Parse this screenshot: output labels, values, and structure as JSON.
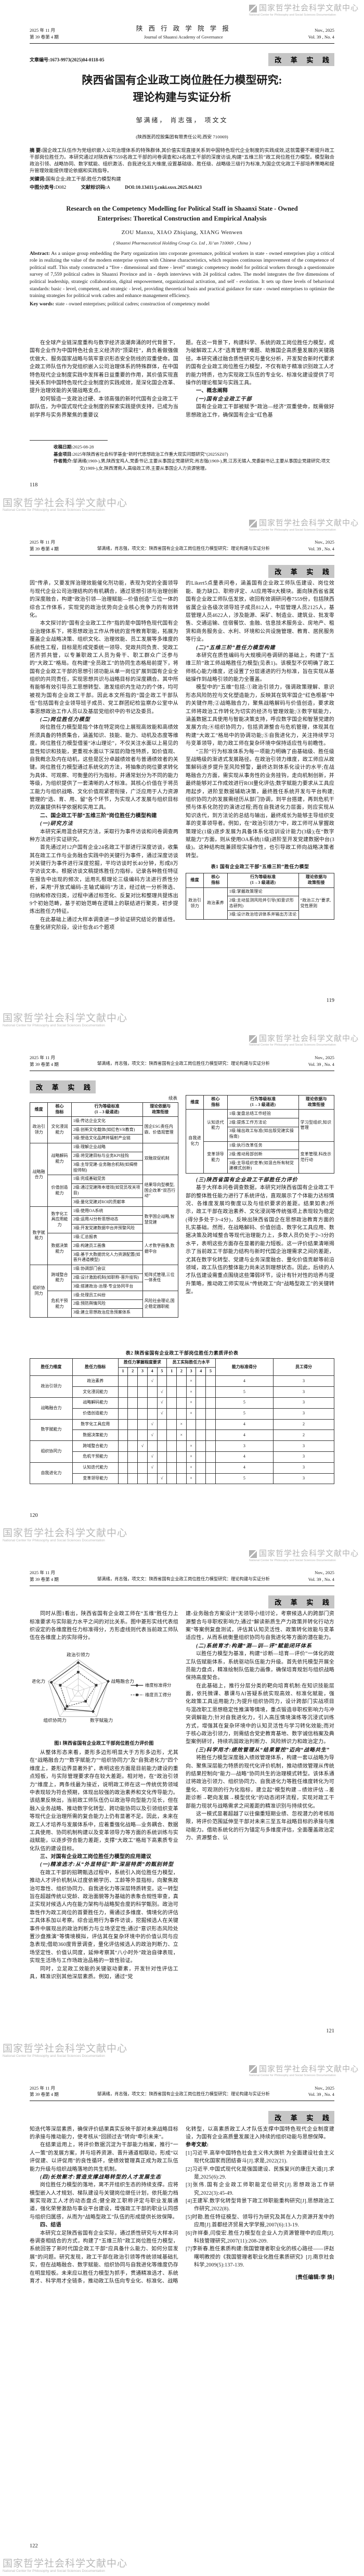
{
  "watermark": {
    "cn": "国家哲学社会科学文献中心",
    "en": "National Center for Philosophy and Social Sciences Documentation"
  },
  "header": {
    "date_cn": "2025 年 11 月",
    "issue_cn": "第 39 卷第 4 期",
    "journal_cn": "陕 西 行 政 学 院 学 报",
    "journal_en": "Journal of Shaanxi Academy of Governance",
    "date_en": "Nov., 2025",
    "vol_en": "Vol. 39 , No. 4",
    "running_title": "邹满绪，肖志强，项文文：陕西省国有企业政工岗位胜任力模型研究：理论构建与实证分析",
    "section_badge": "改 革 实 践"
  },
  "page1": {
    "article_no": "文章编号:1673-9973(2025)04-0118-05",
    "title1": "陕西省国有企业政工岗位胜任力模型研究:",
    "title2": "理论构建与实证分析",
    "authors": "邹满绪，  肖志强，  项文文",
    "affiliation": "(陕西医药控股集团有限责任公司,西安 710069)",
    "abstract_label": "摘  要:",
    "abstract": "国企政工队伍作为党组织嵌入公司治理体系的特殊群体,其价值实现直接关系到中国特色现代企业制度的实践成效,这就需要不断提升政工干部岗位胜任力。本研究通过对陕西省7559名政工干部的问卷调查和24名政工干部的深度访谈,构建“五维三阶”政工岗位胜任力模型。模型融合政治引领、战略协同、数字赋能、组织激活、自我进化五大维度,设置基础级、胜任级、战略级三级行为标准,为国企优化政工干部培养策略和提升管理效能提供理论依据和实践指导。",
    "keywords_label": "关键词:",
    "keywords": "国有企业;政工干部;胜任力模型构建",
    "clc_label": "中图分类号:",
    "clc": "D082",
    "doc_label": "文献标识码:",
    "doc_code": "A",
    "doi": "DOI:10.13411/j.cnki.sxsx.2025.04.023",
    "en_title1": "Research on the Competency Modelling for Political Staff in Shaanxi State - Owned",
    "en_title2": "Enterprises: Thoretical Construction and Empirical Analysis",
    "en_authors": "ZOU Manxu, XIAO Zhiqiang, XIANG Wenwen",
    "en_affiliation": "( Shaanxi Pharmaceutical Holding Group Co. Ltd , Xi’an 710069 , China )",
    "en_abstract_label": "Abstract:",
    "en_abstract": "As a unique group embedding the Party organization into corporate governance, political workers in state - owned enterprises play a critical role in realizing the value of the modern enterprise system with Chinese characteristics, which requires continuous improvement of the competence of political staff. This study constructed a “five - dimensional and three - level” strategic competency model for political workers through a questionnaire survey of 7,559 political cadres in Shaanxi Province and in - depth interviews with 24 political cadres. The model integrates the five dimensions of political leadership, strategic collaboration, digital empowerment, organizational activation, and self - evolution. It sets up three levels of behavioral standards: basic - level, competent, and strategic - level, providing theoretical basis and practical guidance for state - owned enterprises to optimize the training strategies for political work cadres and enhance management efficiency.",
    "en_keywords_label": "Key words:",
    "en_keywords": "state - owned enterprises; political cadres; construction of competency model",
    "fn_received_label": "收稿日期:",
    "fn_received": "2025-08-28",
    "fn_fund_label": "基金项目:",
    "fn_fund": "2025年陕西省社会科学基金“新时代思想政治工作重大现实问题研究”(2025SZ07)",
    "fn_bio_label": "作者简介:",
    "fn_bio": "邹满绪(1969-),男,陕西宝鸡人,党委书记,主要从事国企党建研究;肖志强(1969-),男,江苏无锡人,党委副书记,主要从事国企党建研究;项文文(1989-),女,陕西渭南人,高级政工师,主要从事国企人力资源管理。",
    "page_no": "118",
    "left_blocks": [
      {
        "t": "在全球产业链深度重构与数字经济浪潮奔涌的时代背景下，国有企业作为中国特色社会主义经济的“顶梁柱”，肩负着做强做优做大、服务国家战略与筑牢意识形态安全防线的双重使命。国企政工师队伍作为党组织嵌入公司治理体系的特殊群体，在中国特色现代企业制度实践中发挥着日益重要的作用，其价值实现直接关系到中国特色现代企业制度的实践成效，是深化国企改革、提升治理效能的关键战略支点。"
      },
      {
        "t": "如何锻造一支政治过硬、本领高强的新时代国有企业政工干部队伍，为中国式现代企业制度的探索实践提供支持，已成为当前学界与实务界聚焦的重要议"
      }
    ],
    "right_blocks": [
      {
        "c": "cont",
        "t": "题。在这一背景下，构建科学、系统的政工岗位胜任力模型，成为破解政工人才“选育管用”难题、助推国企高质量发展的关键路径。本研究通过融合质性研究与量化分析，开发契合新时代要求的国有企业政工岗位胜任力模型，不仅有助于精准识别政工人才的能力特质，也为实现政工队伍的专业化、标准化建设提供了可操作的理论框架与实践工具。"
      },
      {
        "c": "h2",
        "t": "一、概念阐释"
      },
      {
        "c": "h3",
        "t": "(一)国有企业政工干部"
      },
      {
        "t": "国有企业政工干部被赋予“政治—经济”双重使命，既需做好思想政治工作，确保国有企业“红色基"
      }
    ]
  },
  "page2": {
    "page_no": "119",
    "left_blocks": [
      {
        "c": "cont",
        "t": "因”传承，又要发挥治理效能催化剂功能，表现为党的全面领导与现代企业公司治理结构的有机耦合，通过思想引领与治理创新的深度融合，构建“政治引领—治理赋能—价值创造”三位一体的综合工作体系，实现党的政治优势向企业核心竞争力的有效转化。"
      },
      {
        "t": "本文探讨的“国有企业政工工作”指的是中国特色现代国有企业治理体系下，将思想政治工作从传统的宣传教育职能，拓展为覆盖企业战略决策、组织文化、治理效能、员工发展等多维度的系统性工程，目标是形成党委统一领导、党政共同负责、党政工团齐抓共管，以专兼职政工人员为骨干、职工群众广泛参与的“大政工”格局。在构建“全员政工”的协同生态格局前提下，将国有企业政工干部的思想引领功能从单一岗位扩展到国有企业全组织的共同责任，实现思想共识与战略目标的深度耦合。其中所有能够有效引导员工思想转型、激发组织内生动力的个体，均可被视为国有企业政工干部。因此本文所指的“国企政工干部队伍”包括国有企业领导班子成员、党工群团纪检监察办公室中从事思想政治工作人员以及基层党组织中的书记及委员。"
      },
      {
        "c": "h3",
        "t": "(二)岗位胜任力模型"
      },
      {
        "t": "岗位胜任力模型是指个体在特定岗位上展现高效能和高绩效所须具备的特质集合，涵盖知识、技能、能力、动机及态度等维度。岗位胜任力模型借鉴“冰山理论”，不仅关注水面以上易见的显性知识和技能，更重视水面以下深层的隐性特质，如价值观、自我概念及内在动机，这些是区分卓越绩效者与普通绩效者的关键。岗位胜任力模型通过系统化的方法，将抽象的岗位要求转化为具体、可观察、可衡量的行为指标，并通常划分为不同的能力等级，为组织提供了一套清晰的人才标准。其核心价值在于将员工能力与组织战略、文化价值观紧密衔接，广泛应用于人力资源管理的“选、育、用、留”各个环节，为实现人才发展与组织目标的双赢提供科学依据和实用工具。"
      },
      {
        "c": "h2",
        "t": "二、国企政工干部“五维三阶”岗位胜任力模型构建"
      },
      {
        "c": "h3",
        "t": "(一)研究方法"
      },
      {
        "t": "本研究采用混合研究方法，采取行为事件访谈和问卷调查两种方法进行实证研究。"
      },
      {
        "t": "首先通过对12户国有企业24名政工干部进行深度访谈，收集其在政工工作与业务融合实践中的关键行为事件，通过深度访谈对关键行为事件进行深度挖掘，平均访谈时长40分钟，形成8万字访谈文本。根据访谈文稿提炼胜任力指标，记录各种胜任特征在报告中出现的频次，运用扎根理论三级编码方法进行质性分析，采用“开放式编码-主轴式编码”方法，经过统一分析筛选、归纳和修改归类，过程中通过标签化、反复对比和整理共提炼出9个初始范畴，基于初始范畴在逻辑上的联结进行聚类，初步提炼出胜任力特征。"
      },
      {
        "t": "在此基础上通过大样本调查进一步验证研究结论的普适性。在量化研究阶段，设计包含45个题项"
      }
    ],
    "right_blocks": [
      {
        "c": "cont",
        "t": "的Likert5点量表问卷，涵盖国有企业政工师队伍建设、岗位效能、能力缺口、职称评定、AI应用等8大模块。面向陕西省省属国有企业政工师队伍发放，收回有效调研问卷7559份，包括陕西省属企业各级次领导班子成员812人，中层管理人员2125人，基层管理人员4622人，涉及能源、采矿、制造业、建筑业、批发零售、交通运输、住宿餐饮、金融、信息技术服务业、房地产、租赁和商务服务业、水利、环境和公共设施管理、教育、居民服务等行业。"
      },
      {
        "c": "h3",
        "t": "(二)“五维三阶”胜任力模型构建"
      },
      {
        "t": "本研究在质性编码与大规模问卷调研的基础上，构建了“五维三阶”政工师战略胜任力模型(见表1)。该模型不仅明确了政工师核心能力维度，还设置了分层递进的行为标准，旨在实现从基础操作到战略引领的能力全覆盖。"
      },
      {
        "t": "模型中的“五维”包括:①政治引领力，强调政策理解、意识形态风险防控与文化塑造能力，反映其在筑牢国企“红色根基”中的关键作用;②战略融合力，聚焦战略解码与价值创造，要求政工师将政治工作转化为切实的经济与管理效能;③数字赋能力，涵盖数据工具使用与智能决策支持，呼应数字国企和智慧党建的发展方向;④组织协同力，包括资源整合与危机管理，体现其在构建“大政工”格局中的协调功能;⑤自我进化力，关注持续学习与变革领导，助力政工师在复杂环境中保持适应性与前瞻性。"
      },
      {
        "t": "“三阶”行为标准体系为每一项能力明确了由基础级、胜任级至战略级的渐进式发展路径。在政治引领力维度，政工师应从政策解码逐步提升至风险预警，最终达到体系化设计的水平;在战略融合力方面，需实现从事务性的业务挂钩，走向机制创新，并最终能够对工作成效进行ROI量化评估;数字赋能力要求从工具应用起步，进阶至数据辅助决策，最终胜任系统开发与平台构建;组织协同力的发展需经历从部门协调，到平台搭建，再到危机干预与体系化防控的演进过程;而在自我进化力层面，则应实现从知识迭代，到方法论的总结与输出，最终成长为能够主导组织变革的变革领导者。例如，在“政治引领力”中，政工师可从掌握政策理论(1级)逐步发展为具备体系化培训设计能力(3级);在“数字赋能力”方面，则从使用OA系统(1级)进阶至开发党建数据中台(3级)。这种结构既兼顾现实操作性，也引导政工师向战略决策者转型。"
      }
    ]
  },
  "page3": {
    "page_no": "120",
    "right_blocks": [
      {
        "c": "h3",
        "t": "(三)陕西省国有企业政工干部胜任力评价"
      },
      {
        "t": "基于大样本问卷调查数据，本研究对陕西省国有企业政工干部的整体胜任能力进行了系统评估，直观展示了个体能力达标情况、各维度发展均衡度以及与组织要求的差距。结果如表2所示，政工干部在政治素养、文化浸润等传统强项上表现较为稳定(得分多处于3~4分)，反映出陕西省国企在思想政治教育方面的扎实基础。然而，在战略解码、价值创造、数字化工具应用、数据决策及跨域整合等现代治理能力上，多数人员仍处于2~3分的水平，表明这些方面存在显著的能力短板。这一评价结果清晰揭示了当前政工干部能力结构与新时代国企治理需求之间的差距，尤其在数字化转型、党建与业务深度融合、量化价值贡献等前沿领域，政工队伍的整体能力尚未达到理想状态。因此，后续的人才队伍建设需重点围绕这些薄弱环节，设计有针对性的培养与提升策略，推动政工师实现从“传统政工”向“战略型政工”的关键转型。"
      }
    ]
  },
  "page4": {
    "page_no": "121",
    "left_blocks_a": [
      {
        "t": "同时从图1看出，陕西省国有企业政工师在“五维”胜任力上标准要求与实际能力水平之间的对比关系。图中菱形实线代表组织设定的各维度胜任力标准得分，方形虚线则代表当前政工师队伍在各维度上的实际得分。"
      }
    ],
    "figure1": {
      "caption": "图1  陕西省国有企业政工干部岗位胜任力评价图",
      "type": "radar",
      "axes": [
        "政治引领力",
        "战略融合力",
        "数字赋能力",
        "组织协同力",
        "自我进化力"
      ],
      "std": [
        4.5,
        5,
        4,
        3.5,
        4.5
      ],
      "emp": [
        3,
        3,
        2,
        3,
        3
      ],
      "max": 5,
      "legend": [
        "维度标准得分",
        "维度员工得分"
      ]
    },
    "left_blocks_b": [
      {
        "t": "从整体形态来看，菱形多边形明显大于方形多边形，尤其在“战略融合力”“数字赋能力”“组织协同力”及“自我进化力”四个维度上，菱形边界显著外扩，表明这些方面是目前能力建设的重点短板，与实际管理要求存在较大差距。相对地，在“政治引领力”维度上，两条线最为接近，说明政工师在这一传统优势领域中表现较为符合预期，体现出较强的政治素养和文化传导能力。该结果反映出，当前政工师队伍仍以政治导向型能力见长，但在融入业务战略、推动数字化转型、跨功能协同以及引领组织变革等现代企业治理所需的复合能力上仍有显著不足。因此，未来在政工人才培养与发展体系中，应着重强化战略—业务耦合、数据工具使用、协同机制构建以及变革领导力等方面的系统训练与实战赋能，以逐步弥合能力差距，支撑“大政工”格局下高素质专业化队伍的建设目标。"
      },
      {
        "c": "h2",
        "t": "三、对国有企业政工岗位胜任力模型的应用建议"
      },
      {
        "c": "h3",
        "t": "(一)精准选才:从“外显特征”到“深层特质”的甄别转型"
      },
      {
        "t": "在政工干部的招聘甄选过程中，系统引入岗位胜任力模型，推动人才评价机制从过度依赖学历、工龄等外显指标，向聚焦政治可靠性、组织协同力、自我进化力等深层特质转变。这一转型旨在超越传统以党龄、政治面貌等为基础的表象合规性审查，真正实现对候选人内在能力架构与战略契合度的科学甄别。政治可靠性作为政工岗位的首要胜任力，需通过多维度、情境化的评估工具体系加以考察。综合运用行为事件访谈，挖掘候选人在关键事件中展现出的政治判断力与立场坚定性;通过“意识形态风险处置沙盘推演”等情境模拟，评估其在复杂环境中的价值认同与应急表现;借助360度背景调查，量化评估候选人的政治判断力、立场坚定性、价值认同度，延伸考察其“八小时外”政治自律表现，实现生活场与工作场政治品格的一致性验证。"
      },
      {
        "t": "同时，立足政工效能的关键驱动要素，开发针对性评估工具，精准识别其他深层素质。例如，通过“党"
      }
    ],
    "right_blocks": [
      {
        "c": "cont",
        "t": "建-业务融合方案设计”无领导小组讨论，考察候选人的跨部门资源整合与非职权影响力;通过“解读新质生产力政策并转化行动方案”等案例复盘测试，评估其认知灵活性、政策转化效能与变革适应性，从而系统衡量组织协同与自我进化等方面的潜在能力。"
      },
      {
        "c": "h3",
        "t": "(二)系统育才:构建“测—训—评”赋能闭环体系"
      },
      {
        "t": "以胜任力模型为基准，构建“诊断—培育—评价”一体化的政工队伍赋能体系，系统驱动队伍能力升级。首先依托模型开展全员能力盘点，精准绘制队伍能力画像，确保培育规划与组织战略保持高度契合。"
      },
      {
        "t": "在此基础上，推行分层分类的靶向培育机制:在知识技能层面，依托微课、慕课与AI答疑系统实现高效、标准化赋能，强化政策工具运用能力;为提升组织协同力，设计跨部门实战项目与混改职工思想稳定性推演等情境，重点锻造非职权影响力与冲突调解能力;针对自我进化力，引入高压情境演练等沉浸式训练方式，增强其在复杂环境中的认知灵活性与学习转化效能;而对于核心政治引领力，则需结合党史教育基地、数字诚信档案及典型案例研讨，持续巩固政治判断力、风险辨识力和政治定力。"
      },
      {
        "c": "h3",
        "t": "(三)科学用才:绩效管理从“结果管控”迈向“战略共生”"
      },
      {
        "t": "将胜任力模型深度融入绩效管理体系，构建一套以战略为导向、聚焦深层能力特质的现代化评价机制，推动绩效管理从传统的结果控制向“能力—战略”协同共生的治理模式转型。该体系通过将政治引领力、组织协同力、自我进化力等胜任维度转化为可量化、可观测的行为化指标，建立起“模型构建→绩效评估→差距诊断→靶向发展→模型优化”的动态闭环流程，实现对政工干部能力现状与战略需求之间差距的精准识别与持续优化。"
      },
      {
        "t": "这一模式显著超越了以往偏重短期业绩、忽视潜力的考核局限，将评价范围延伸至干部对未来三至五年战略目标的承接与推动能力。借助系统化的行为锚定与多维度评估，全面覆盖政治定力、资源整合、认"
      }
    ]
  },
  "page5": {
    "page_no": "122",
    "left_blocks": [
      {
        "c": "cont",
        "t": "知迭代等深层素质，确保评价结果真实反映干部对未来战略目标的承接与推动能力，使考核从“回顾过去”转向“牵引未来”。"
      },
      {
        "t": "在结果运用上，将评价数据沉淀为干部能力档案，推行“一人一策”的发展方案，并与培养资源、晋升通道相联动，形成“以评促建、以评促用”的良性循环，使绩效管理真正成为政工队伍能力升级与组织战略落地的共生机制。"
      },
      {
        "c": "h3",
        "t": "(四)长效聚才:营造支撑战略转型的人才发展生态"
      },
      {
        "t": "岗位胜任力模型的落地，离不开组织生态的持续支撑。应将模型嵌入人才规划、梯队建设与关键岗位继任计划，依托能力档案实现政工人才的动态盘点;健全政工职称评定与职业发展通道，强化荣誉激励与事业平台建设，增强政工干部的职业认同感与组织归属感，从而为“战略型政工”队伍的形成提供长效保障。"
      },
      {
        "c": "h2",
        "t": "四、结语"
      },
      {
        "t": "本研究立足陕西省国有企业实际，通过质性研究与大样本问卷调查相结合的方式，构建了“五维三阶”政工岗位胜任力模型，系统回答了新时代国企政工干部“应具备什么能力、如何分层发展”的问题。研究发现，政工干部在政治引领等传统领域基础扎实，但在战略融合、数字赋能、组织协同与自我进化等维度仍存在明显短板。未来应以胜任力模型为抓手，贯通精准选才、系统育才、科学用才全链条，推动政工队伍向专业化、标准化、战略"
      }
    ],
    "right_blocks": [
      {
        "c": "cont",
        "t": "化转型，以高素质政工人才队伍支撑中国特色现代企业制度建设，为国有企业高质量发展注入持续的组织动能与思想保障。"
      },
      {
        "c": "refhead",
        "t": "参考文献:"
      },
      {
        "c": "ref",
        "t": "[1]习近平.高举中国特色社会主义伟大旗帜 为全面建设社会主义现代化国家而团结奋斗[J].求是,2022(21)."
      },
      {
        "c": "ref",
        "t": "[2]习近平.中国式现代化是强国建设、民族复兴的康庄大道[J].求是,2025(6):29."
      },
      {
        "c": "ref",
        "t": "[3]张伟.国有企业政工师职能定位研究[J].思想政治工作研究,2022(3):45-49."
      },
      {
        "c": "ref",
        "t": "[4]王建军.数字化转型背景下政工师职能重构研究[J].思想政治工作研究,2022(8)."
      },
      {
        "c": "ref",
        "t": "[5]时勘.胜任特征模型、领导行为研究及其在人力资源开发中的应用[J].首都经济贸易大学学报,2007(6):13-19."
      },
      {
        "c": "ref",
        "t": "[6]许祥秦,闫俊宏.胜任力模型在企业人力资源管理中的应用[J].科技管理研究,2007(11):208-209."
      },
      {
        "c": "ref",
        "t": "[7]李新春.胜任素质构建:我国管理者职业化的核心路径——评赵曙明教授的《我国管理者职业化胜任素质研究》[J].南京社会科学,2009(5):137-139."
      },
      {
        "c": "editor",
        "t": "[责任编辑:李  焕]"
      }
    ]
  },
  "tables": {
    "level_header": {
      "dim": "维度",
      "ind1": "核心",
      "ind2": "指标",
      "std1": "行为等级标准",
      "std2": "(1→3 级递进)",
      "theory1": "理论依据与",
      "theory2": "政策衔接"
    },
    "cont_label": "续表",
    "table1": {
      "title": "表1  国有企业政工干部“五维三阶”胜任力模型",
      "groups": [
        {
          "dim": "政治引领力",
          "ind": "政治素养",
          "levels": [
            "1级:掌握政策理论",
            "2级:主动监测风险并引导(如意识形态研判)",
            "3级:设计政治培训体系并输出方法论"
          ],
          "theory": "“政治三力”要求,党性原则"
        }
      ]
    },
    "table_cont_left": {
      "groups": [
        {
          "dim": "政治引领力",
          "ind": "文化浸润能力",
          "levels": [
            "1级:传达企业文化",
            "2级:创新文化载体(如红色VR教育)",
            "3级:塑造文化品牌并辐射产业链"
          ],
          "theory": "国企ESG责任内嵌、价值观管理"
        },
        {
          "dim": "战略融合力",
          "ind": "战略解码能力",
          "levels": [
            "1级:理解企业战略",
            "2级:将党建目标与业务KPI挂钩",
            "3级:主导党建-业务融合机制(如揭榜挂帅制)"
          ],
          "theory": "双融双促机制"
        },
        {
          "ind": "价值创造能力",
          "levels": [
            "1级:完成基础党务",
            "2级:通过党建降本增效(如党员攻关项目)",
            "3级:量化党建对ROI的贡献率"
          ],
          "theory": "结果导向型模型,国企改革“双百行动”"
        },
        {
          "dim": "数字赋能力",
          "ind": "数字化工具应用能力",
          "levels": [
            "1级:使用OA系统",
            "2级:运用AI分析思想动态",
            "3级:开发党建数据中台并预警风险"
          ],
          "theory": "数字国企战略,智慧党建"
        },
        {
          "ind": "数据决策能力",
          "levels": [
            "1级:汇总报表",
            "2级:构建员工画像",
            "3级:基于大数据优化人力资源配置(如晋升通道模型)"
          ],
          "theory": "人才数字画像,数据中台"
        },
        {
          "dim": "组织协同力",
          "ind": "跨域整合能力",
          "levels": [
            "1级:协调部门会议",
            "2级:设计激励机制(如职称-晋升挂钩)",
            "3级:搭建政治-治理-专业协同平台"
          ],
          "theory": "矩阵式管理,三位一体责任"
        },
        {
          "ind": "危机干预能力",
          "levels": [
            "1级:处理员工纠纷",
            "2级:预防舆情风险",
            "3级:建立思想政治应急预案体系"
          ],
          "theory": "风险社会理论,国企稳定器职能"
        }
      ]
    },
    "table_cont_right": {
      "groups": [
        {
          "dim": "自我进化力",
          "ind": "认知迭代能力",
          "levels": [
            "1级:复盘总结工作经验",
            "2级:提炼工作方法论",
            "3级:输出政工标准(如出版党建实操指南)"
          ],
          "theory": "学习型组织,知识管理"
        },
        {
          "ind": "变革领导能力",
          "levels": [
            "1级:执行改革任务",
            "2级:推动局部创新",
            "3级:主导组织变革(如混合所有制党建模式创新)"
          ],
          "theory": "变革管理,科改示范行动"
        }
      ]
    },
    "table2": {
      "title": "表2  陕西省国有企业政工干部岗位胜任力素质评价表",
      "h_dim": "胜任力维度",
      "h_ind": "胜任力指标",
      "h_req": "胜任力掌握程度要求",
      "h_act": "员工实际胜任力水平",
      "h_std": "能力标准得分",
      "h_emp": "员工得分",
      "scale": [
        "1",
        "2",
        "3",
        "4",
        "5"
      ],
      "check": "√",
      "cross": "×",
      "rows": [
        {
          "dim": "政治引领力",
          "ind": "政治素养",
          "req": 4,
          "act": 3,
          "std": "4",
          "emp": "3"
        },
        {
          "ind": "文化浸润能力",
          "req": 5,
          "act": 3,
          "std": "5",
          "emp": "3"
        },
        {
          "dim": "战略融合力",
          "ind": "战略解码能力",
          "req": 5,
          "act": 3,
          "std": "5",
          "emp": "3"
        },
        {
          "ind": "价值创造能力",
          "req": 5,
          "act": 3,
          "std": "5",
          "emp": "3"
        },
        {
          "dim": "数字赋能力",
          "ind": "数字化工具应用",
          "req": 4,
          "act": 2,
          "std": "4",
          "emp": "2"
        },
        {
          "ind": "数据决策能力",
          "req": 4,
          "act": 2,
          "std": "4",
          "emp": "2"
        },
        {
          "dim": "组织协同力",
          "ind": "跨域整合能力",
          "req": 3,
          "act": 3,
          "std": "3",
          "emp": "3"
        },
        {
          "ind": "危机干预能力",
          "req": 4,
          "act": 3,
          "std": "4",
          "emp": "3"
        },
        {
          "dim": "自我进化力",
          "ind": "认知迭代能力",
          "req": 4,
          "act": 3,
          "std": "4",
          "emp": "3"
        },
        {
          "ind": "变革领导能力",
          "req": 5,
          "act": 3,
          "std": "5",
          "emp": "3"
        }
      ]
    }
  }
}
